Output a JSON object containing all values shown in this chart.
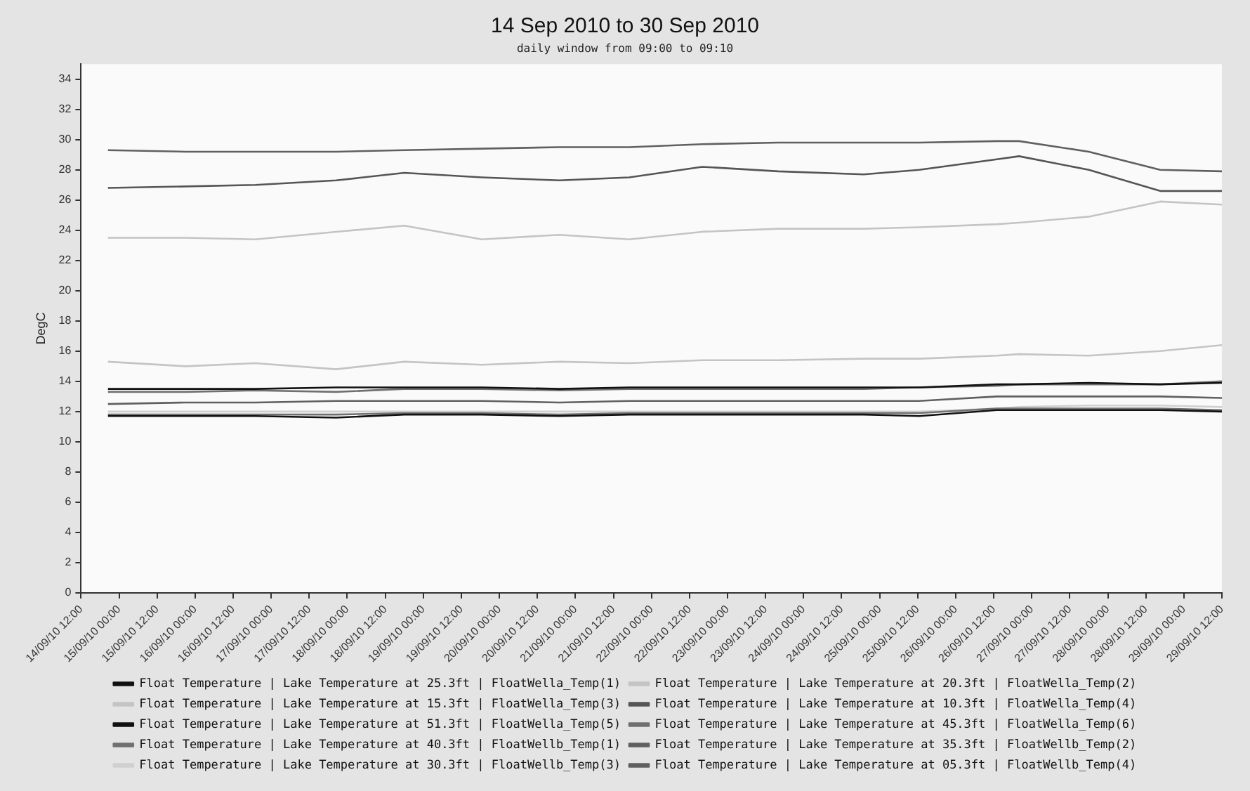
{
  "chart_data": {
    "type": "line",
    "title": "14 Sep 2010 to 30 Sep 2010",
    "subtitle": "daily window from 09:00 to 09:10",
    "ylabel": "DegC",
    "x": [
      "2010-09-14T20:30",
      "2010-09-15T21:00",
      "2010-09-16T19:00",
      "2010-09-17T20:30",
      "2010-09-18T18:00",
      "2010-09-19T18:30",
      "2010-09-20T19:00",
      "2010-09-21T17:00",
      "2010-09-22T16:00",
      "2010-09-23T16:00",
      "2010-09-24T19:00",
      "2010-09-25T12:30",
      "2010-09-26T13:00",
      "2010-09-26T20:00",
      "2010-09-27T18:00",
      "2010-09-28T16:30",
      "2010-09-29T12:00"
    ],
    "series": [
      {
        "name": "Float Temperature | Lake Temperature at 25.3ft | FloatWella_Temp(1)",
        "color": "#111111",
        "values": [
          13.5,
          13.5,
          13.5,
          13.6,
          13.6,
          13.6,
          13.5,
          13.6,
          13.6,
          13.6,
          13.6,
          13.6,
          13.8,
          13.8,
          13.9,
          13.8,
          13.9
        ]
      },
      {
        "name": "Float Temperature | Lake Temperature at 20.3ft | FloatWella_Temp(2)",
        "color": "#c4c4c4",
        "values": [
          15.3,
          15.0,
          15.2,
          14.8,
          15.3,
          15.1,
          15.3,
          15.2,
          15.4,
          15.4,
          15.5,
          15.5,
          15.7,
          15.8,
          15.7,
          16.0,
          16.4
        ]
      },
      {
        "name": "Float Temperature | Lake Temperature at 15.3ft | FloatWella_Temp(3)",
        "color": "#c4c4c4",
        "values": [
          23.5,
          23.5,
          23.4,
          23.9,
          24.3,
          23.4,
          23.7,
          23.4,
          23.9,
          24.1,
          24.1,
          24.2,
          24.4,
          24.5,
          24.9,
          25.9,
          25.7
        ]
      },
      {
        "name": "Float Temperature | Lake Temperature at 10.3ft | FloatWella_Temp(4)",
        "color": "#555555",
        "values": [
          26.8,
          26.9,
          27.0,
          27.3,
          27.8,
          27.5,
          27.3,
          27.5,
          28.2,
          27.9,
          27.7,
          28.0,
          28.7,
          28.9,
          28.0,
          26.6,
          26.6
        ]
      },
      {
        "name": "Float Temperature | Lake Temperature at 51.3ft | FloatWella_Temp(5)",
        "color": "#111111",
        "values": [
          11.7,
          11.7,
          11.7,
          11.6,
          11.8,
          11.8,
          11.7,
          11.8,
          11.8,
          11.8,
          11.8,
          11.7,
          12.1,
          12.1,
          12.1,
          12.1,
          12.0
        ]
      },
      {
        "name": "Float Temperature | Lake Temperature at 45.3ft | FloatWella_Temp(6)",
        "color": "#707070",
        "values": [
          13.3,
          13.3,
          13.4,
          13.3,
          13.5,
          13.5,
          13.4,
          13.5,
          13.5,
          13.5,
          13.5,
          13.6,
          13.7,
          13.8,
          13.8,
          13.8,
          14.0
        ]
      },
      {
        "name": "Float Temperature | Lake Temperature at 40.3ft | FloatWellb_Temp(1)",
        "color": "#707070",
        "values": [
          11.8,
          11.8,
          11.8,
          11.8,
          11.9,
          11.9,
          11.8,
          11.9,
          11.9,
          11.9,
          11.9,
          11.9,
          12.2,
          12.2,
          12.2,
          12.2,
          12.1
        ]
      },
      {
        "name": "Float Temperature | Lake Temperature at 35.3ft | FloatWellb_Temp(2)",
        "color": "#606060",
        "values": [
          12.5,
          12.6,
          12.6,
          12.7,
          12.7,
          12.7,
          12.6,
          12.7,
          12.7,
          12.7,
          12.7,
          12.7,
          13.0,
          13.0,
          13.0,
          13.0,
          12.9
        ]
      },
      {
        "name": "Float Temperature | Lake Temperature at 30.3ft | FloatWellb_Temp(3)",
        "color": "#d0d0d0",
        "values": [
          12.0,
          12.0,
          12.0,
          12.0,
          12.0,
          12.0,
          12.0,
          12.0,
          12.0,
          12.0,
          12.0,
          12.0,
          12.2,
          12.3,
          12.4,
          12.4,
          12.3
        ]
      },
      {
        "name": "Float Temperature | Lake Temperature at 05.3ft | FloatWellb_Temp(4)",
        "color": "#606060",
        "values": [
          29.3,
          29.2,
          29.2,
          29.2,
          29.3,
          29.4,
          29.5,
          29.5,
          29.7,
          29.8,
          29.8,
          29.8,
          29.9,
          29.9,
          29.2,
          28.0,
          27.9
        ]
      }
    ],
    "ylim": [
      0,
      35
    ],
    "yticks": [
      0,
      2,
      4,
      6,
      8,
      10,
      12,
      14,
      16,
      18,
      20,
      22,
      24,
      26,
      28,
      30,
      32,
      34
    ],
    "xlim": [
      "2010-09-14T12:00",
      "2010-09-29T12:00"
    ],
    "xticks": [
      {
        "value": "2010-09-14T12:00",
        "label": "14/09/10 12:00"
      },
      {
        "value": "2010-09-15T00:00",
        "label": "15/09/10 00:00"
      },
      {
        "value": "2010-09-15T12:00",
        "label": "15/09/10 12:00"
      },
      {
        "value": "2010-09-16T00:00",
        "label": "16/09/10 00:00"
      },
      {
        "value": "2010-09-16T12:00",
        "label": "16/09/10 12:00"
      },
      {
        "value": "2010-09-17T00:00",
        "label": "17/09/10 00:00"
      },
      {
        "value": "2010-09-17T12:00",
        "label": "17/09/10 12:00"
      },
      {
        "value": "2010-09-18T00:00",
        "label": "18/09/10 00:00"
      },
      {
        "value": "2010-09-18T12:00",
        "label": "18/09/10 12:00"
      },
      {
        "value": "2010-09-19T00:00",
        "label": "19/09/10 00:00"
      },
      {
        "value": "2010-09-19T12:00",
        "label": "19/09/10 12:00"
      },
      {
        "value": "2010-09-20T00:00",
        "label": "20/09/10 00:00"
      },
      {
        "value": "2010-09-20T12:00",
        "label": "20/09/10 12:00"
      },
      {
        "value": "2010-09-21T00:00",
        "label": "21/09/10 00:00"
      },
      {
        "value": "2010-09-21T12:00",
        "label": "21/09/10 12:00"
      },
      {
        "value": "2010-09-22T00:00",
        "label": "22/09/10 00:00"
      },
      {
        "value": "2010-09-22T12:00",
        "label": "22/09/10 12:00"
      },
      {
        "value": "2010-09-23T00:00",
        "label": "23/09/10 00:00"
      },
      {
        "value": "2010-09-23T12:00",
        "label": "23/09/10 12:00"
      },
      {
        "value": "2010-09-24T00:00",
        "label": "24/09/10 00:00"
      },
      {
        "value": "2010-09-24T12:00",
        "label": "24/09/10 12:00"
      },
      {
        "value": "2010-09-25T00:00",
        "label": "25/09/10 00:00"
      },
      {
        "value": "2010-09-25T12:00",
        "label": "25/09/10 12:00"
      },
      {
        "value": "2010-09-26T00:00",
        "label": "26/09/10 00:00"
      },
      {
        "value": "2010-09-26T12:00",
        "label": "26/09/10 12:00"
      },
      {
        "value": "2010-09-27T00:00",
        "label": "27/09/10 00:00"
      },
      {
        "value": "2010-09-27T12:00",
        "label": "27/09/10 12:00"
      },
      {
        "value": "2010-09-28T00:00",
        "label": "28/09/10 00:00"
      },
      {
        "value": "2010-09-28T12:00",
        "label": "28/09/10 12:00"
      },
      {
        "value": "2010-09-29T00:00",
        "label": "29/09/10 00:00"
      },
      {
        "value": "2010-09-29T12:00",
        "label": "29/09/10 12:00"
      }
    ],
    "grid": false,
    "legend": "bottom",
    "marker": "none",
    "line_style": "solid"
  }
}
